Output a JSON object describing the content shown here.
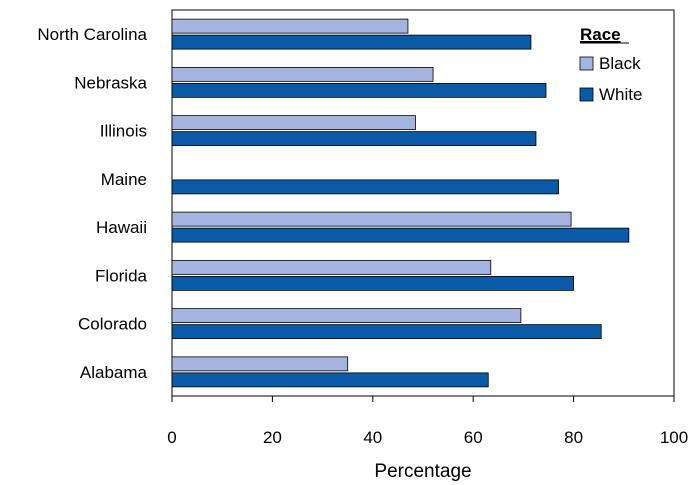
{
  "chart_data": {
    "type": "bar",
    "orientation": "horizontal",
    "categories": [
      "North Carolina",
      "Nebraska",
      "Illinois",
      "Maine",
      "Hawaii",
      "Florida",
      "Colorado",
      "Alabama"
    ],
    "series": [
      {
        "name": "Black",
        "color": "#a6b4e0",
        "values": [
          47,
          52,
          48.5,
          null,
          79.5,
          63.5,
          69.5,
          35
        ]
      },
      {
        "name": "White",
        "color": "#0a5aa8",
        "values": [
          71.5,
          74.5,
          72.5,
          77,
          91,
          80,
          85.5,
          63
        ]
      }
    ],
    "title": "",
    "xlabel": "Percentage",
    "ylabel": "",
    "xlim": [
      0,
      100
    ],
    "xticks": [
      0,
      20,
      40,
      60,
      80,
      100
    ],
    "grid": false,
    "legend": {
      "title": "Race",
      "placement": "top-right"
    }
  }
}
